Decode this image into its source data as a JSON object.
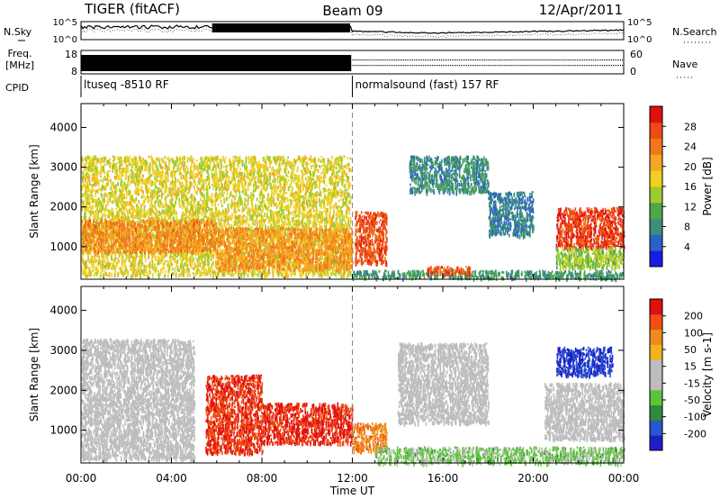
{
  "header": {
    "station": "TIGER (fitACF)",
    "beam": "Beam 09",
    "date": "12/Apr/2011"
  },
  "top_panels": {
    "nsky_label": "N.Sky",
    "nsearch_label": "N.Search",
    "nsky_ticks": [
      "10^5",
      "10^0"
    ],
    "nsearch_ticks": [
      "10^5",
      "10^0"
    ],
    "freq_label_1": "Freq.",
    "freq_label_2": "[MHz]",
    "freq_ticks": [
      "18",
      "8"
    ],
    "nave_label": "Nave",
    "nave_ticks": [
      "60",
      "0"
    ],
    "cpid_label": "CPID",
    "cpid_1": "ltuseq -8510 RF",
    "cpid_2": "normalsound (fast) 157 RF",
    "cpid_switch_hour": 12
  },
  "colors": {
    "power_scale": [
      "#1a1ae6",
      "#2a62c8",
      "#3d8f7a",
      "#4ea84a",
      "#9ccc2e",
      "#f0d020",
      "#f5a623",
      "#f07818",
      "#ee4a12",
      "#e01010"
    ],
    "velocity_scale": [
      "#1e1ec8",
      "#2a55d0",
      "#2f8a3a",
      "#5cc43a",
      "#bdbdbd",
      "#bdbdbd",
      "#f0b420",
      "#f08a1a",
      "#f05010",
      "#e01010"
    ]
  },
  "chart_data": [
    {
      "type": "heatmap",
      "title": "Power",
      "ylabel": "Slant Range [km]",
      "ylim": [
        180,
        4600
      ],
      "yticks": [
        "1000",
        "2000",
        "3000",
        "4000"
      ],
      "xlim": [
        0,
        24
      ],
      "colorbar_label": "Power [dB]",
      "colorbar_ticks": [
        "4",
        "8",
        "12",
        "16",
        "20",
        "24",
        "28"
      ],
      "clim": [
        0,
        32
      ],
      "regions": [
        {
          "t": [
            0,
            11.9
          ],
          "r": [
            300,
            3300
          ],
          "v": 17
        },
        {
          "t": [
            0,
            6
          ],
          "r": [
            900,
            1700
          ],
          "v": 23
        },
        {
          "t": [
            6,
            12
          ],
          "r": [
            450,
            1500
          ],
          "v": 22
        },
        {
          "t": [
            12.1,
            13.5
          ],
          "r": [
            600,
            1900
          ],
          "v": 27
        },
        {
          "t": [
            12,
            24
          ],
          "r": [
            230,
            420
          ],
          "v": 9
        },
        {
          "t": [
            15.3,
            17.2
          ],
          "r": [
            320,
            520
          ],
          "v": 27
        },
        {
          "t": [
            14.5,
            18
          ],
          "r": [
            2400,
            3300
          ],
          "v": 8
        },
        {
          "t": [
            18,
            20
          ],
          "r": [
            1300,
            2400
          ],
          "v": 7
        },
        {
          "t": [
            21,
            24
          ],
          "r": [
            1000,
            2000
          ],
          "v": 28
        },
        {
          "t": [
            21,
            24
          ],
          "r": [
            500,
            1000
          ],
          "v": 14
        }
      ]
    },
    {
      "type": "heatmap",
      "title": "Velocity",
      "ylabel": "Slant Range [km]",
      "ylim": [
        180,
        4600
      ],
      "yticks": [
        "1000",
        "2000",
        "3000",
        "4000"
      ],
      "xlim": [
        0,
        24
      ],
      "xlabel": "Time UT",
      "xticks": [
        "00:00",
        "04:00",
        "08:00",
        "12:00",
        "16:00",
        "20:00",
        "00:00"
      ],
      "colorbar_label": "Velocity [m s-1]",
      "colorbar_ticks": [
        "200",
        "100",
        "50",
        "15",
        "-15",
        "-50",
        "-100",
        "-200"
      ],
      "clim": [
        -250,
        250
      ],
      "regions": [
        {
          "t": [
            0,
            5
          ],
          "r": [
            300,
            3300
          ],
          "v": 0
        },
        {
          "t": [
            5.5,
            8
          ],
          "r": [
            450,
            2400
          ],
          "v": 200
        },
        {
          "t": [
            8,
            12
          ],
          "r": [
            700,
            1700
          ],
          "v": 210
        },
        {
          "t": [
            12,
            13.5
          ],
          "r": [
            500,
            1200
          ],
          "v": 130
        },
        {
          "t": [
            13,
            24
          ],
          "r": [
            200,
            600
          ],
          "v": -60
        },
        {
          "t": [
            14,
            18
          ],
          "r": [
            1200,
            3200
          ],
          "v": 0
        },
        {
          "t": [
            21,
            23.5
          ],
          "r": [
            2400,
            3100
          ],
          "v": -200
        },
        {
          "t": [
            20.5,
            24
          ],
          "r": [
            800,
            2200
          ],
          "v": 5
        }
      ]
    }
  ]
}
